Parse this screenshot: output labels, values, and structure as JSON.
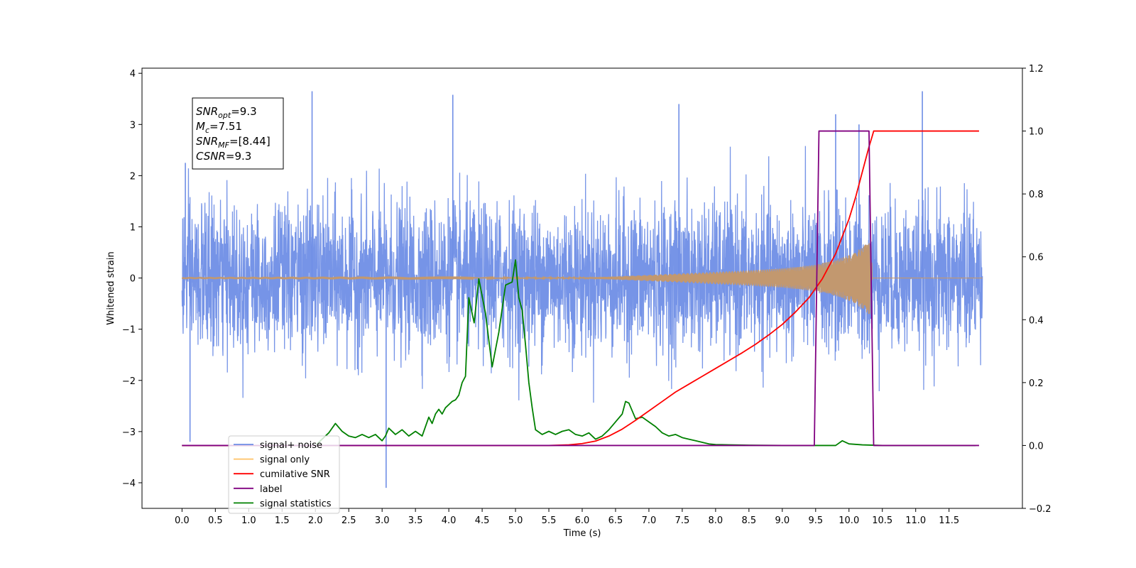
{
  "chart_data": {
    "type": "line",
    "xlabel": "Time (s)",
    "ylabel": "Whitened strain",
    "xlim": [
      -0.6,
      12.6
    ],
    "ylim_left": [
      -4.5,
      4.1
    ],
    "ylim_right": [
      -0.2,
      1.2
    ],
    "x_ticks": [
      0.0,
      0.5,
      1.0,
      1.5,
      2.0,
      2.5,
      3.0,
      3.5,
      4.0,
      4.5,
      5.0,
      5.5,
      6.0,
      6.5,
      7.0,
      7.5,
      8.0,
      8.5,
      9.0,
      9.5,
      10.0,
      10.5,
      11.0,
      11.5
    ],
    "x_tick_labels": [
      "0.0",
      "0.5",
      "1.0",
      "1.5",
      "2.0",
      "2.5",
      "3.0",
      "3.5",
      "4.0",
      "4.5",
      "5.0",
      "5.5",
      "6.0",
      "6.5",
      "7.0",
      "7.5",
      "8.0",
      "8.5",
      "9.0",
      "9.5",
      "10.0",
      "10.5",
      "11.0",
      "11.5"
    ],
    "y_left_ticks": [
      -4,
      -3,
      -2,
      -1,
      0,
      1,
      2,
      3,
      4
    ],
    "y_left_tick_labels": [
      "−4",
      "−3",
      "−2",
      "−1",
      "0",
      "1",
      "2",
      "3",
      "4"
    ],
    "y_right_ticks": [
      -0.2,
      0.0,
      0.2,
      0.4,
      0.6,
      0.8,
      1.0,
      1.2
    ],
    "y_right_tick_labels": [
      "−0.2",
      "0.0",
      "0.2",
      "0.4",
      "0.6",
      "0.8",
      "1.0",
      "1.2"
    ],
    "legend_position": "lower-left",
    "legend": [
      {
        "label": "signal+ noise",
        "color": "#6f8ee6"
      },
      {
        "label": "signal only",
        "color": "#ffc266"
      },
      {
        "label": "cumilative SNR",
        "color": "#ff0000"
      },
      {
        "label": "label",
        "color": "#800080"
      },
      {
        "label": "signal statistics",
        "color": "#008000"
      }
    ],
    "annotation": {
      "lines": [
        {
          "sym": "SNR",
          "sub": "opt",
          "val": "=9.3"
        },
        {
          "sym": "M",
          "sub": "c",
          "val": "=7.51"
        },
        {
          "sym": "SNR",
          "sub": "MF",
          "val": "=[8.44]"
        },
        {
          "sym": "CSNR",
          "sub": "",
          "val": "=9.3"
        }
      ]
    },
    "series": [
      {
        "name": "signal+ noise",
        "axis": "left",
        "color": "#6f8ee6",
        "x_range": [
          0.0,
          12.0
        ],
        "noise_std": 0.72,
        "peaks": [
          [
            0.05,
            2.25
          ],
          [
            0.12,
            -3.2
          ],
          [
            1.95,
            3.65
          ],
          [
            3.06,
            -4.1
          ],
          [
            4.06,
            3.58
          ],
          [
            7.45,
            3.4
          ],
          [
            9.8,
            3.2
          ],
          [
            11.1,
            3.65
          ],
          [
            10.15,
            3.0
          ]
        ]
      },
      {
        "name": "signal only",
        "axis": "left",
        "color": "#c2986f",
        "x_range": [
          0.0,
          12.0
        ],
        "merger_time": 10.35,
        "envelope": [
          [
            0.0,
            0.005
          ],
          [
            6.0,
            0.01
          ],
          [
            6.5,
            0.03
          ],
          [
            7.0,
            0.06
          ],
          [
            7.5,
            0.09
          ],
          [
            8.0,
            0.12
          ],
          [
            8.5,
            0.15
          ],
          [
            9.0,
            0.19
          ],
          [
            9.5,
            0.26
          ],
          [
            9.8,
            0.35
          ],
          [
            10.0,
            0.45
          ],
          [
            10.2,
            0.6
          ],
          [
            10.33,
            0.75
          ],
          [
            10.35,
            0.0
          ],
          [
            12.0,
            0.0
          ]
        ]
      },
      {
        "name": "cumilative SNR",
        "axis": "right",
        "color": "#ff0000",
        "x": [
          0.0,
          5.5,
          5.8,
          6.0,
          6.2,
          6.4,
          6.6,
          6.8,
          7.0,
          7.2,
          7.4,
          7.6,
          7.8,
          8.0,
          8.2,
          8.4,
          8.6,
          8.8,
          9.0,
          9.2,
          9.4,
          9.6,
          9.8,
          10.0,
          10.1,
          10.2,
          10.3,
          10.35,
          10.37,
          11.95
        ],
        "y": [
          0.0,
          0.0,
          0.002,
          0.006,
          0.014,
          0.03,
          0.052,
          0.08,
          0.11,
          0.14,
          0.17,
          0.195,
          0.22,
          0.245,
          0.27,
          0.295,
          0.322,
          0.352,
          0.385,
          0.425,
          0.47,
          0.53,
          0.61,
          0.72,
          0.79,
          0.87,
          0.95,
          0.985,
          1.0,
          1.0
        ]
      },
      {
        "name": "label",
        "axis": "right",
        "color": "#800080",
        "x": [
          0.0,
          9.48,
          9.55,
          10.3,
          10.37,
          11.95
        ],
        "y": [
          0.0,
          0.0,
          1.0,
          1.0,
          0.0,
          0.0
        ]
      },
      {
        "name": "signal statistics",
        "axis": "right",
        "color": "#008000",
        "x": [
          0.0,
          2.0,
          2.1,
          2.2,
          2.3,
          2.4,
          2.5,
          2.6,
          2.7,
          2.8,
          2.9,
          3.0,
          3.05,
          3.1,
          3.2,
          3.3,
          3.4,
          3.5,
          3.6,
          3.7,
          3.75,
          3.8,
          3.85,
          3.9,
          3.95,
          4.0,
          4.05,
          4.1,
          4.15,
          4.2,
          4.25,
          4.3,
          4.38,
          4.45,
          4.55,
          4.65,
          4.75,
          4.85,
          4.95,
          5.0,
          5.05,
          5.1,
          5.15,
          5.2,
          5.25,
          5.3,
          5.4,
          5.5,
          5.6,
          5.7,
          5.8,
          5.9,
          6.0,
          6.1,
          6.2,
          6.3,
          6.4,
          6.5,
          6.6,
          6.65,
          6.7,
          6.75,
          6.8,
          6.9,
          7.0,
          7.1,
          7.2,
          7.3,
          7.4,
          7.5,
          7.6,
          7.7,
          7.8,
          7.9,
          8.0,
          8.2,
          8.5,
          9.0,
          9.5,
          9.7,
          9.8,
          9.9,
          10.0,
          10.2,
          10.5,
          11.0,
          11.5,
          11.9
        ],
        "y": [
          0.0,
          0.0,
          0.02,
          0.04,
          0.07,
          0.045,
          0.03,
          0.025,
          0.035,
          0.025,
          0.035,
          0.015,
          0.03,
          0.055,
          0.035,
          0.05,
          0.03,
          0.045,
          0.03,
          0.09,
          0.07,
          0.1,
          0.115,
          0.1,
          0.12,
          0.13,
          0.14,
          0.145,
          0.16,
          0.2,
          0.22,
          0.47,
          0.39,
          0.53,
          0.42,
          0.25,
          0.36,
          0.51,
          0.52,
          0.59,
          0.47,
          0.43,
          0.32,
          0.2,
          0.12,
          0.05,
          0.035,
          0.045,
          0.035,
          0.045,
          0.05,
          0.035,
          0.03,
          0.04,
          0.02,
          0.03,
          0.05,
          0.075,
          0.1,
          0.14,
          0.135,
          0.11,
          0.085,
          0.09,
          0.075,
          0.06,
          0.04,
          0.03,
          0.035,
          0.025,
          0.02,
          0.015,
          0.01,
          0.005,
          0.003,
          0.002,
          0.001,
          0.0,
          0.0,
          0.0,
          0.0,
          0.015,
          0.005,
          0.002,
          0.0,
          0.0,
          0.0,
          0.0
        ]
      }
    ]
  }
}
